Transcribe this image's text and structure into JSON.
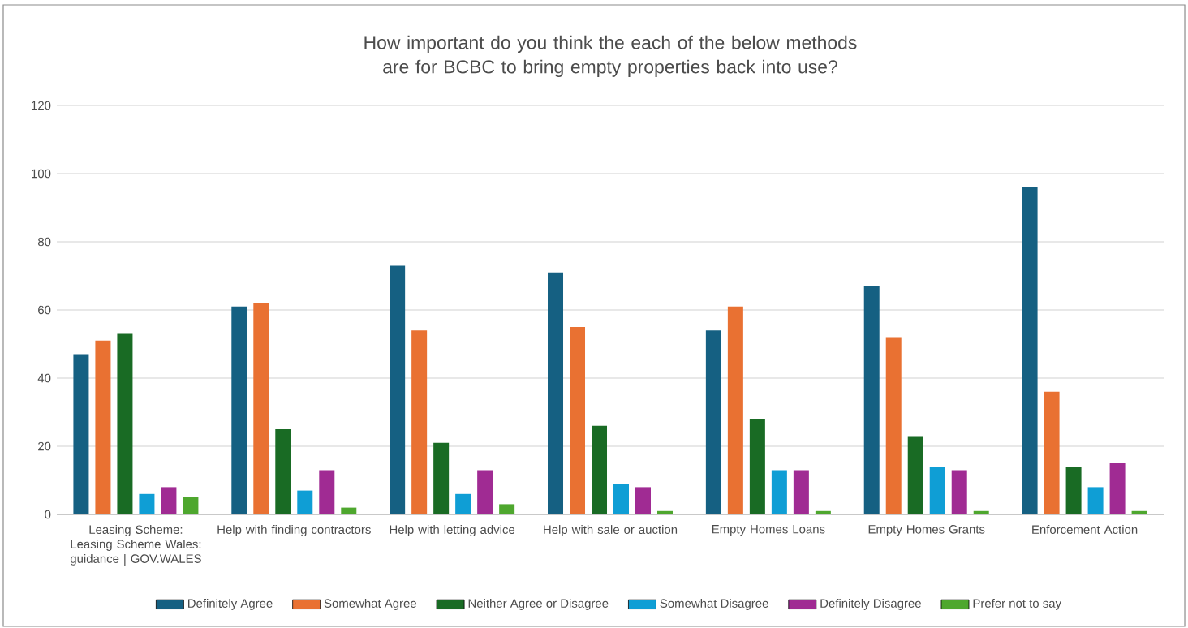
{
  "chart_data": {
    "type": "bar",
    "title": "How important do you think the each of the below methods are for BCBC to bring empty properties back into use?",
    "categories": [
      "Leasing Scheme: Leasing Scheme Wales: guidance | GOV.WALES",
      "Help with finding contractors",
      "Help with letting advice",
      "Help with sale or auction",
      "Empty Homes Loans",
      "Empty Homes Grants",
      "Enforcement Action"
    ],
    "series": [
      {
        "name": "Definitely Agree",
        "color": "#156082",
        "values": [
          47,
          61,
          73,
          71,
          54,
          67,
          96
        ]
      },
      {
        "name": "Somewhat Agree",
        "color": "#e97132",
        "values": [
          51,
          62,
          54,
          55,
          61,
          52,
          36
        ]
      },
      {
        "name": "Neither Agree or Disagree",
        "color": "#196b24",
        "values": [
          53,
          25,
          21,
          26,
          28,
          23,
          14
        ]
      },
      {
        "name": "Somewhat Disagree",
        "color": "#0f9ed5",
        "values": [
          6,
          7,
          6,
          9,
          13,
          14,
          8
        ]
      },
      {
        "name": "Definitely Disagree",
        "color": "#a02b93",
        "values": [
          8,
          13,
          13,
          8,
          13,
          13,
          15
        ]
      },
      {
        "name": "Prefer not to say",
        "color": "#4ea72e",
        "values": [
          5,
          2,
          3,
          1,
          1,
          1,
          1
        ]
      }
    ],
    "ylim": [
      0,
      120
    ],
    "yticks": [
      0,
      20,
      40,
      60,
      80,
      100,
      120
    ],
    "grid": "y",
    "legend": "bottom"
  }
}
